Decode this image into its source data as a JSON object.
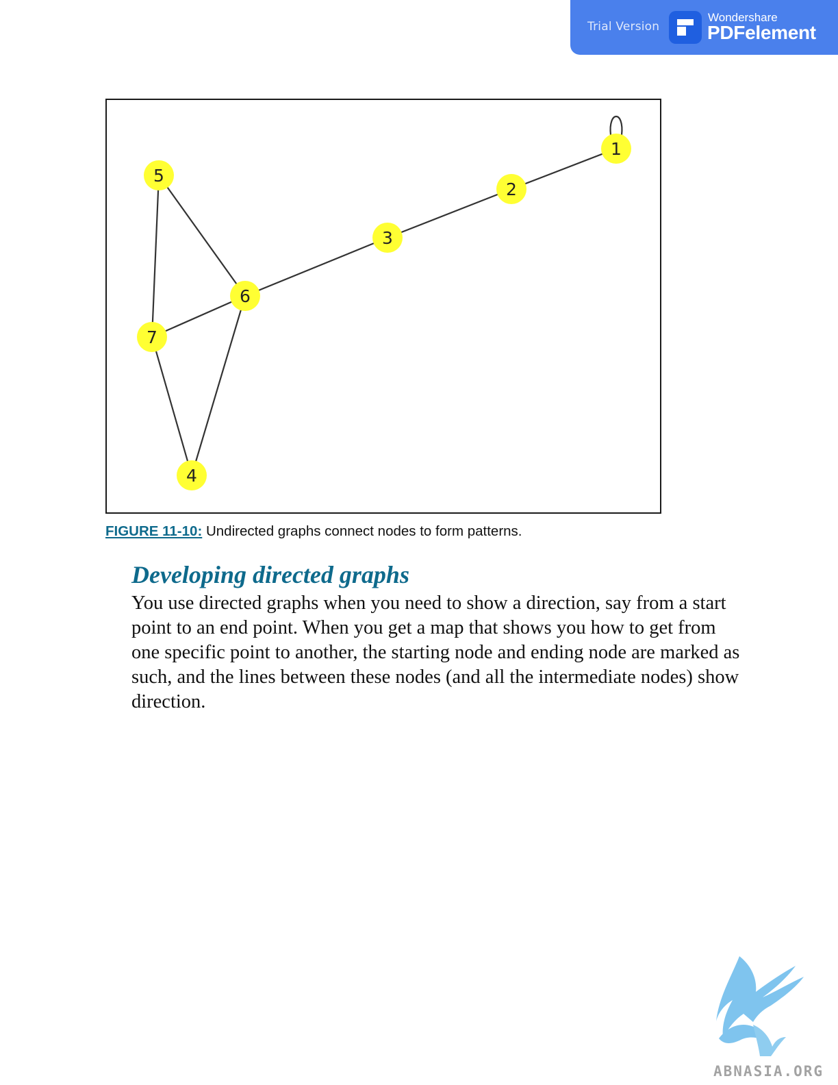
{
  "banner": {
    "trial_label": "Trial Version",
    "brand_top": "Wondershare",
    "brand_name": "PDFelement"
  },
  "figure": {
    "nodes": [
      {
        "id": "1",
        "label": "1",
        "self_loop": true
      },
      {
        "id": "2",
        "label": "2"
      },
      {
        "id": "3",
        "label": "3"
      },
      {
        "id": "4",
        "label": "4"
      },
      {
        "id": "5",
        "label": "5"
      },
      {
        "id": "6",
        "label": "6"
      },
      {
        "id": "7",
        "label": "7"
      }
    ],
    "edges": [
      [
        "1",
        "1"
      ],
      [
        "1",
        "2"
      ],
      [
        "2",
        "3"
      ],
      [
        "3",
        "6"
      ],
      [
        "5",
        "6"
      ],
      [
        "5",
        "7"
      ],
      [
        "6",
        "7"
      ],
      [
        "6",
        "4"
      ],
      [
        "7",
        "4"
      ]
    ],
    "node_color": "#ffff33",
    "edge_color": "#333333"
  },
  "caption": {
    "ref": "FIGURE 11-10:",
    "text": " Undirected graphs connect nodes to form patterns."
  },
  "section": {
    "heading": "Developing directed graphs",
    "paragraph": "You use directed graphs when you need to show a direction, say from a start point to an end point. When you get a map that shows you how to get from one specific point to another, the starting node and ending node are marked as such, and the lines between these nodes (and all the intermediate nodes) show direction."
  },
  "watermark": {
    "text": "ABNASIA.ORG"
  }
}
